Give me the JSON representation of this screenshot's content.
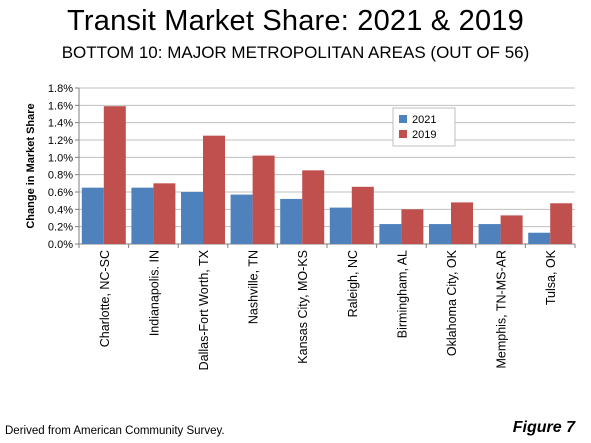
{
  "header": {
    "title": "Transit Market Share: 2021 & 2019",
    "subtitle": "BOTTOM 10: MAJOR METROPOLITAN AREAS (OUT OF 56)"
  },
  "footer": {
    "source": "Derived from American Community Survey.",
    "figure": "Figure 7"
  },
  "chart_data": {
    "type": "bar",
    "title": "Transit Market Share: 2021 & 2019",
    "subtitle": "BOTTOM 10: MAJOR METROPOLITAN AREAS (OUT OF 56)",
    "xlabel": "",
    "ylabel": "Change in Market Share",
    "ylim": [
      0,
      0.018
    ],
    "yticks": [
      0,
      0.002,
      0.004,
      0.006,
      0.008,
      0.01,
      0.012,
      0.014,
      0.016,
      0.018
    ],
    "ytick_labels": [
      "0.0%",
      "0.2%",
      "0.4%",
      "0.6%",
      "0.8%",
      "1.0%",
      "1.2%",
      "1.4%",
      "1.6%",
      "1.8%"
    ],
    "grid": true,
    "legend_position": "top-right",
    "categories": [
      "Charlotte, NC-SC",
      "Indianapolis. IN",
      "Dallas-Fort Worth, TX",
      "Nashville, TN",
      "Kansas City, MO-KS",
      "Raleigh, NC",
      "Birmingham, AL",
      "Oklahoma City, OK",
      "Memphis, TN-MS-AR",
      "Tulsa, OK"
    ],
    "series": [
      {
        "name": "2021",
        "color": "#4F81BD",
        "values": [
          0.0065,
          0.0065,
          0.006,
          0.0057,
          0.0052,
          0.0042,
          0.0023,
          0.0023,
          0.0023,
          0.0013
        ]
      },
      {
        "name": "2019",
        "color": "#C0504D",
        "values": [
          0.0159,
          0.007,
          0.0125,
          0.0102,
          0.0085,
          0.0066,
          0.004,
          0.0048,
          0.0033,
          0.0047
        ]
      }
    ]
  }
}
